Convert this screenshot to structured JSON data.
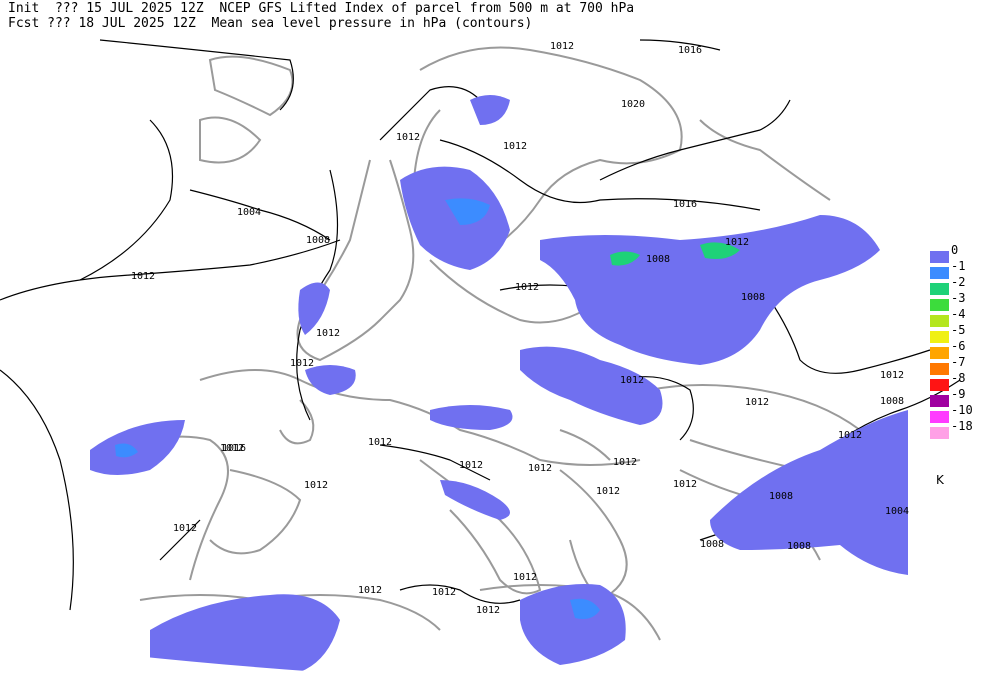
{
  "header": {
    "line1": "Init  ??? 15 JUL 2025 12Z  NCEP GFS Lifted Index of parcel from 500 m at 700 hPa",
    "line2": "Fcst ??? 18 JUL 2025 12Z  Mean sea level pressure in hPa (contours)"
  },
  "legend": {
    "unit": "K",
    "items": [
      {
        "label": "0",
        "color": "#7070f0"
      },
      {
        "label": "-1",
        "color": "#3c8cff"
      },
      {
        "label": "-2",
        "color": "#1ed278"
      },
      {
        "label": "-3",
        "color": "#3cdc3c"
      },
      {
        "label": "-4",
        "color": "#b4e61e"
      },
      {
        "label": "-5",
        "color": "#f0f014"
      },
      {
        "label": "-6",
        "color": "#ffa500"
      },
      {
        "label": "-7",
        "color": "#ff7800"
      },
      {
        "label": "-8",
        "color": "#ff1414"
      },
      {
        "label": "-9",
        "color": "#a000a0"
      },
      {
        "label": "-10",
        "color": "#ff3cff"
      },
      {
        "label": "-18",
        "color": "#ffa0e6"
      }
    ]
  },
  "contour_labels": [
    "1012",
    "1016",
    "1020",
    "1004",
    "1008",
    "1012",
    "1012",
    "1012",
    "1008",
    "1012",
    "1012",
    "1016",
    "1012",
    "1012",
    "1012",
    "1012",
    "1012",
    "1012",
    "1012",
    "1016",
    "1012",
    "1012",
    "1012",
    "1012",
    "1012",
    "1012",
    "1008",
    "1008",
    "1004",
    "1008",
    "1012",
    "1012",
    "1012",
    "1012",
    "1012",
    "1012",
    "1008",
    "1008"
  ]
}
